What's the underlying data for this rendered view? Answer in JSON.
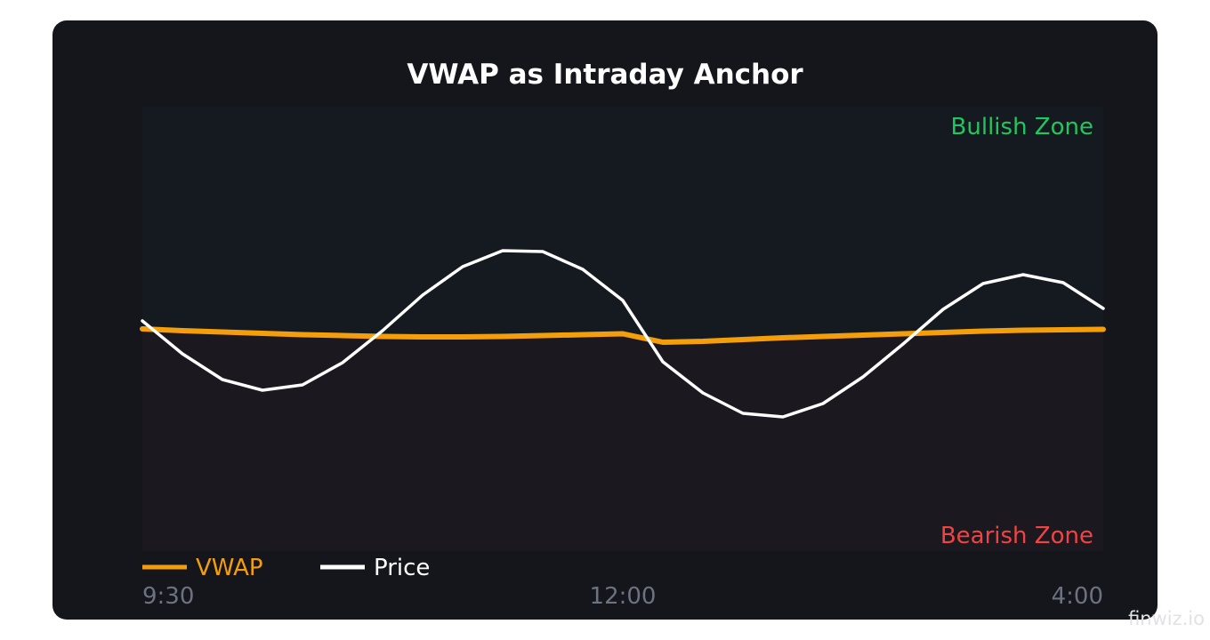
{
  "chart_data": {
    "type": "line",
    "title": "VWAP as Intraday Anchor",
    "xlabel": "",
    "ylabel": "",
    "x_tick_labels": [
      "9:30",
      "12:00",
      "4:00"
    ],
    "zones": {
      "upper": {
        "label": "Bullish Zone",
        "color": "#22c55e",
        "fill": "#151a20"
      },
      "lower": {
        "label": "Bearish Zone",
        "color": "#ef4444",
        "fill": "#1c1820"
      }
    },
    "ylim": [
      0,
      100
    ],
    "grid": false,
    "legend_position": "bottom-left",
    "x": [
      0,
      1,
      2,
      3,
      4,
      5,
      6,
      7,
      8,
      9,
      10,
      11,
      12,
      13,
      14,
      15,
      16,
      17,
      18,
      19,
      20,
      21,
      22,
      23,
      24
    ],
    "series": [
      {
        "name": "VWAP",
        "color": "#f59e0b",
        "values": [
          50,
          49.6,
          49.3,
          49,
          48.7,
          48.5,
          48.3,
          48.2,
          48.2,
          48.3,
          48.5,
          48.7,
          48.9,
          47,
          47.2,
          47.6,
          48,
          48.3,
          48.6,
          48.9,
          49.2,
          49.5,
          49.7,
          49.8,
          49.9
        ]
      },
      {
        "name": "Price",
        "color": "#ffffff",
        "values": [
          51.8,
          44.4,
          38.6,
          36.2,
          37.4,
          42.4,
          49.6,
          57.6,
          64,
          67.6,
          67.4,
          63.4,
          56.4,
          42.6,
          35.6,
          31,
          30.2,
          33.2,
          39.2,
          46.6,
          54.4,
          60.2,
          62.2,
          60.4,
          54.6
        ]
      }
    ]
  },
  "watermark": "finwiz.io"
}
